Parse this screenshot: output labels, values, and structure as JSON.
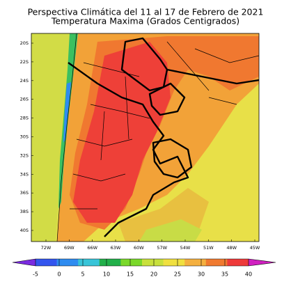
{
  "header": {
    "title": "Perspectiva Climática del 11 al 17 de Febrero de 2021",
    "subtitle": "Temperatura Maxima (Grados Centigrados)"
  },
  "map": {
    "lat_labels": [
      "20S",
      "22S",
      "24S",
      "26S",
      "28S",
      "30S",
      "32S",
      "34S",
      "36S",
      "38S",
      "40S"
    ],
    "lon_labels": [
      "72W",
      "69W",
      "66W",
      "63W",
      "60W",
      "57W",
      "54W",
      "51W",
      "48W",
      "45W"
    ]
  },
  "colorbar": {
    "ticks": [
      -5,
      0,
      5,
      10,
      15,
      20,
      25,
      30,
      35,
      40
    ],
    "colors": [
      "#7a2be0",
      "#3355ee",
      "#2f8cf0",
      "#38c4d8",
      "#22b04a",
      "#7ad82a",
      "#c8e03c",
      "#f0e040",
      "#f4b040",
      "#f07a30",
      "#ee3a3a",
      "#d020c0"
    ]
  }
}
